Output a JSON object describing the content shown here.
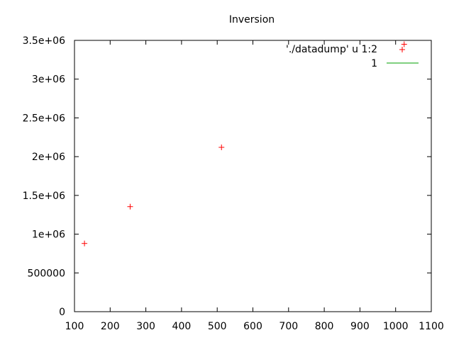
{
  "chart_data": {
    "type": "scatter",
    "title": "Inversion",
    "xlabel": "",
    "ylabel": "",
    "xlim": [
      100,
      1100
    ],
    "ylim": [
      0,
      3500000
    ],
    "x_ticks": [
      {
        "value": 100,
        "label": "100"
      },
      {
        "value": 200,
        "label": "200"
      },
      {
        "value": 300,
        "label": "300"
      },
      {
        "value": 400,
        "label": "400"
      },
      {
        "value": 500,
        "label": "500"
      },
      {
        "value": 600,
        "label": "600"
      },
      {
        "value": 700,
        "label": "700"
      },
      {
        "value": 800,
        "label": "800"
      },
      {
        "value": 900,
        "label": "900"
      },
      {
        "value": 1000,
        "label": "1000"
      },
      {
        "value": 1100,
        "label": "1100"
      }
    ],
    "y_ticks": [
      {
        "value": 0,
        "label": "0"
      },
      {
        "value": 500000,
        "label": "500000"
      },
      {
        "value": 1000000,
        "label": "1e+06"
      },
      {
        "value": 1500000,
        "label": "1.5e+06"
      },
      {
        "value": 2000000,
        "label": "2e+06"
      },
      {
        "value": 2500000,
        "label": "2.5e+06"
      },
      {
        "value": 3000000,
        "label": "3e+06"
      },
      {
        "value": 3500000,
        "label": "3.5e+06"
      }
    ],
    "grid": false,
    "legend_position": "top-right",
    "series": [
      {
        "name": "'./datadump' u 1:2",
        "style": "points",
        "marker": "plus",
        "color": "#ff0000",
        "points": [
          {
            "x": 128,
            "y": 880000
          },
          {
            "x": 256,
            "y": 1355000
          },
          {
            "x": 512,
            "y": 2120000
          },
          {
            "x": 1024,
            "y": 3450000
          }
        ]
      },
      {
        "name": "1",
        "style": "line",
        "color": "#00a000",
        "function_value": 1
      }
    ]
  }
}
